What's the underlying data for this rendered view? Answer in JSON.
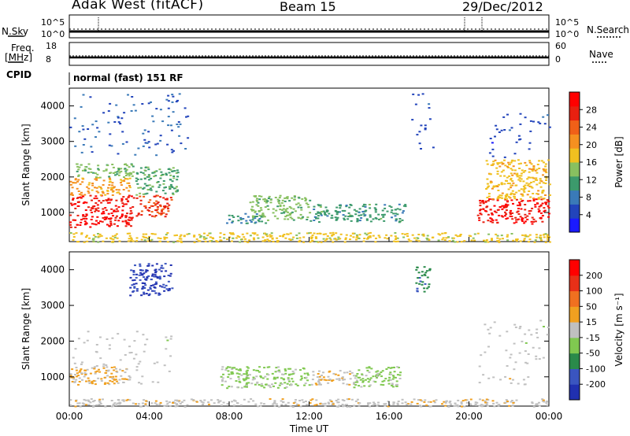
{
  "header": {
    "station": "Adak West (fitACF)",
    "beam": "Beam 15",
    "date": "29/Dec/2012"
  },
  "summary": {
    "nsky_label": "N.Sky",
    "nsky_ticks": [
      "10^5",
      "10^0"
    ],
    "nsearch_label": "N.Search",
    "freq_label": "Freq.",
    "freq_unit": "[MHz]",
    "freq_ticks": [
      "18",
      "8"
    ],
    "nave_label": "Nave",
    "nave_ticks": [
      "60",
      "0"
    ],
    "cpid_label": "CPID",
    "cpid_value": "normal (fast) 151 RF"
  },
  "chart_data": [
    {
      "type": "heatmap",
      "title": "",
      "ylabel": "Slant Range [km]",
      "xlabel": "",
      "x_ticks": [
        "00:00",
        "04:00",
        "08:00",
        "12:00",
        "16:00",
        "20:00",
        "00:00"
      ],
      "y_ticks": [
        "1000",
        "2000",
        "3000",
        "4000"
      ],
      "ylim": [
        180,
        4500
      ],
      "colorbar": {
        "label": "Power [dB]",
        "ticks": [
          "4",
          "8",
          "12",
          "16",
          "20",
          "24",
          "28"
        ],
        "range": [
          0,
          32
        ],
        "colors": [
          "#1a1aff",
          "#2244bb",
          "#3a7ab8",
          "#3c9a6c",
          "#88c060",
          "#f0c020",
          "#f59020",
          "#f06018",
          "#e82010",
          "#ff0000"
        ]
      },
      "regions": [
        {
          "t": [
            0.0,
            3.2
          ],
          "range": [
            600,
            1500
          ],
          "level": 29
        },
        {
          "t": [
            0.0,
            3.0
          ],
          "range": [
            1500,
            2000
          ],
          "level": 20
        },
        {
          "t": [
            0.3,
            3.2
          ],
          "range": [
            2000,
            2400
          ],
          "level": 14
        },
        {
          "t": [
            3.3,
            5.1
          ],
          "range": [
            900,
            1500
          ],
          "level": 26
        },
        {
          "t": [
            3.3,
            5.4
          ],
          "range": [
            1500,
            2300
          ],
          "level": 12
        },
        {
          "t": [
            0.0,
            6.0
          ],
          "range": [
            2600,
            4400
          ],
          "level": 6
        },
        {
          "t": [
            7.8,
            9.8
          ],
          "range": [
            700,
            1000
          ],
          "level": 10
        },
        {
          "t": [
            9.0,
            12.0
          ],
          "range": [
            800,
            1500
          ],
          "level": 14
        },
        {
          "t": [
            12.0,
            16.8
          ],
          "range": [
            750,
            1250
          ],
          "level": 11
        },
        {
          "t": [
            17.0,
            18.2
          ],
          "range": [
            2800,
            4400
          ],
          "level": 5
        },
        {
          "t": [
            20.4,
            24.0
          ],
          "range": [
            700,
            1400
          ],
          "level": 29
        },
        {
          "t": [
            20.8,
            24.0
          ],
          "range": [
            1400,
            2500
          ],
          "level": 18
        },
        {
          "t": [
            21.0,
            24.0
          ],
          "range": [
            2500,
            3800
          ],
          "level": 5
        },
        {
          "t": [
            0.0,
            24.0
          ],
          "range": [
            180,
            450
          ],
          "level": 17
        }
      ]
    },
    {
      "type": "heatmap",
      "title": "",
      "ylabel": "Slant Range [km]",
      "xlabel": "Time UT",
      "x_ticks": [
        "00:00",
        "04:00",
        "08:00",
        "12:00",
        "16:00",
        "20:00",
        "00:00"
      ],
      "y_ticks": [
        "1000",
        "2000",
        "3000",
        "4000"
      ],
      "ylim": [
        180,
        4500
      ],
      "colorbar": {
        "label": "Velocity [m s⁻¹]",
        "ticks": [
          "200",
          "100",
          "50",
          "15",
          "-15",
          "-50",
          "-100",
          "-200"
        ],
        "range": [
          -250,
          250
        ],
        "colors": [
          "#2030b0",
          "#3a55c0",
          "#2a8a4a",
          "#80c850",
          "#c0c0c0",
          "#f0a020",
          "#f07020",
          "#e83018",
          "#ff0000"
        ]
      },
      "regions": [
        {
          "t": [
            0.0,
            5.1
          ],
          "range": [
            800,
            2300
          ],
          "level": 0
        },
        {
          "t": [
            0.0,
            3.0
          ],
          "range": [
            800,
            1300
          ],
          "level": 40
        },
        {
          "t": [
            3.0,
            5.1
          ],
          "range": [
            3300,
            4200
          ],
          "level": -200
        },
        {
          "t": [
            7.5,
            12.0
          ],
          "range": [
            700,
            1300
          ],
          "level": -40
        },
        {
          "t": [
            12.0,
            14.2
          ],
          "range": [
            800,
            1200
          ],
          "level": 30
        },
        {
          "t": [
            14.2,
            16.6
          ],
          "range": [
            700,
            1300
          ],
          "level": -40
        },
        {
          "t": [
            17.3,
            18.0
          ],
          "range": [
            3400,
            4100
          ],
          "level": -120
        },
        {
          "t": [
            20.4,
            24.0
          ],
          "range": [
            800,
            2600
          ],
          "level": 0
        },
        {
          "t": [
            0.0,
            24.0
          ],
          "range": [
            180,
            400
          ],
          "level": 5
        }
      ]
    }
  ]
}
